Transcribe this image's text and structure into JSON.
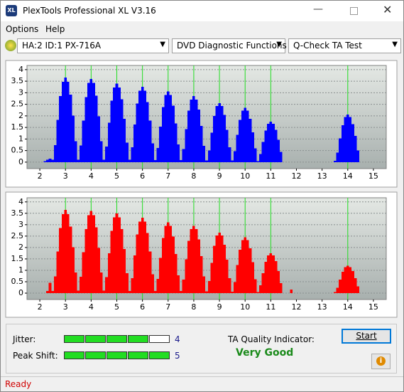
{
  "window": {
    "title": "PlexTools Professional XL V3.16",
    "menu": [
      "Options",
      "Help"
    ]
  },
  "toolbar": {
    "drive": "HA:2 ID:1  PX-716A",
    "function": "DVD Diagnostic Functions",
    "test": "Q-Check TA Test"
  },
  "chart_data": [
    {
      "type": "bar",
      "color": "#0000ff",
      "marker_color": "#22dd22",
      "grid": true,
      "xlim": [
        1.5,
        15.5
      ],
      "ylim": [
        -0.28,
        4.18
      ],
      "xticks": [
        2,
        3,
        4,
        5,
        6,
        7,
        8,
        9,
        10,
        11,
        12,
        13,
        14,
        15
      ],
      "yticks": [
        0,
        0.5,
        1,
        1.5,
        2,
        2.5,
        3,
        3.5,
        4
      ],
      "markers": [
        3,
        4,
        5,
        6,
        7,
        8,
        9,
        10,
        11,
        14
      ],
      "x": [
        2.2,
        2.3,
        2.4,
        2.5,
        2.6,
        2.7,
        2.8,
        2.9,
        3.0,
        3.1,
        3.2,
        3.3,
        3.4,
        3.5,
        3.6,
        3.7,
        3.8,
        3.9,
        4.0,
        4.1,
        4.2,
        4.3,
        4.4,
        4.5,
        4.6,
        4.7,
        4.8,
        4.9,
        5.0,
        5.1,
        5.2,
        5.3,
        5.4,
        5.5,
        5.6,
        5.7,
        5.8,
        5.9,
        6.0,
        6.1,
        6.2,
        6.3,
        6.4,
        6.5,
        6.6,
        6.7,
        6.8,
        6.9,
        7.0,
        7.1,
        7.2,
        7.3,
        7.4,
        7.5,
        7.6,
        7.7,
        7.8,
        7.9,
        8.0,
        8.1,
        8.2,
        8.3,
        8.4,
        8.5,
        8.6,
        8.7,
        8.8,
        8.9,
        9.0,
        9.1,
        9.2,
        9.3,
        9.4,
        9.5,
        9.6,
        9.7,
        9.8,
        9.9,
        10.0,
        10.1,
        10.2,
        10.3,
        10.4,
        10.5,
        10.6,
        10.7,
        10.8,
        10.9,
        11.0,
        11.1,
        11.2,
        11.3,
        11.4,
        13.5,
        13.6,
        13.7,
        13.8,
        13.9,
        14.0,
        14.1,
        14.2,
        14.3,
        14.4
      ],
      "values": [
        0.05,
        0.1,
        0.15,
        0.1,
        0.73,
        1.83,
        2.85,
        3.47,
        3.65,
        3.47,
        2.92,
        2.01,
        0.91,
        0.11,
        0.72,
        1.8,
        2.81,
        3.42,
        3.6,
        3.42,
        2.88,
        1.98,
        0.9,
        0.1,
        0.68,
        1.7,
        2.65,
        3.23,
        3.4,
        3.23,
        2.72,
        1.87,
        0.85,
        0.1,
        0.65,
        1.63,
        2.54,
        3.09,
        3.25,
        3.09,
        2.6,
        1.79,
        0.81,
        0.09,
        0.61,
        1.53,
        2.38,
        2.9,
        3.05,
        2.9,
        2.44,
        1.68,
        0.76,
        0.09,
        0.57,
        1.43,
        2.22,
        2.71,
        2.85,
        2.71,
        2.28,
        1.57,
        0.71,
        0.08,
        0.51,
        1.28,
        1.99,
        2.42,
        2.55,
        2.42,
        2.04,
        1.4,
        0.64,
        0.07,
        0.47,
        1.18,
        1.83,
        2.23,
        2.35,
        2.23,
        1.88,
        1.29,
        0.59,
        0.05,
        0.35,
        0.88,
        1.37,
        1.66,
        1.75,
        1.66,
        1.4,
        0.96,
        0.44,
        0.06,
        0.41,
        1.03,
        1.6,
        1.95,
        2.05,
        1.95,
        1.64,
        1.13,
        0.51
      ]
    },
    {
      "type": "bar",
      "color": "#ff0000",
      "marker_color": "#22dd22",
      "grid": true,
      "xlim": [
        1.5,
        15.5
      ],
      "ylim": [
        -0.28,
        4.18
      ],
      "xticks": [
        2,
        3,
        4,
        5,
        6,
        7,
        8,
        9,
        10,
        11,
        12,
        13,
        14,
        15
      ],
      "yticks": [
        0,
        0.5,
        1,
        1.5,
        2,
        2.5,
        3,
        3.5,
        4
      ],
      "markers": [
        3,
        4,
        5,
        6,
        7,
        8,
        9,
        10,
        11,
        14
      ],
      "x": [
        2.3,
        2.4,
        2.5,
        2.6,
        2.7,
        2.8,
        2.9,
        3.0,
        3.1,
        3.2,
        3.3,
        3.4,
        3.5,
        3.6,
        3.7,
        3.8,
        3.9,
        4.0,
        4.1,
        4.2,
        4.3,
        4.4,
        4.5,
        4.6,
        4.7,
        4.8,
        4.9,
        5.0,
        5.1,
        5.2,
        5.3,
        5.4,
        5.5,
        5.6,
        5.7,
        5.8,
        5.9,
        6.0,
        6.1,
        6.2,
        6.3,
        6.4,
        6.5,
        6.6,
        6.7,
        6.8,
        6.9,
        7.0,
        7.1,
        7.2,
        7.3,
        7.4,
        7.5,
        7.6,
        7.7,
        7.8,
        7.9,
        8.0,
        8.1,
        8.2,
        8.3,
        8.4,
        8.5,
        8.6,
        8.7,
        8.8,
        8.9,
        9.0,
        9.1,
        9.2,
        9.3,
        9.4,
        9.5,
        9.6,
        9.7,
        9.8,
        9.9,
        10.0,
        10.1,
        10.2,
        10.3,
        10.4,
        10.5,
        10.6,
        10.7,
        10.8,
        10.9,
        11.0,
        11.1,
        11.2,
        11.3,
        11.4,
        11.8,
        13.5,
        13.6,
        13.7,
        13.8,
        13.9,
        14.0,
        14.1,
        14.2,
        14.3,
        14.4
      ],
      "values": [
        0.1,
        0.45,
        0.1,
        0.73,
        1.83,
        2.85,
        3.47,
        3.65,
        3.47,
        2.92,
        2.01,
        0.91,
        0.11,
        0.72,
        1.8,
        2.81,
        3.42,
        3.6,
        3.42,
        2.88,
        1.98,
        0.9,
        0.11,
        0.7,
        1.75,
        2.73,
        3.33,
        3.5,
        3.33,
        2.8,
        1.93,
        0.88,
        0.1,
        0.66,
        1.65,
        2.57,
        3.14,
        3.3,
        3.14,
        2.64,
        1.82,
        0.83,
        0.09,
        0.62,
        1.55,
        2.42,
        2.95,
        3.1,
        2.95,
        2.48,
        1.71,
        0.78,
        0.09,
        0.59,
        1.48,
        2.3,
        2.8,
        2.95,
        2.8,
        2.36,
        1.62,
        0.74,
        0.08,
        0.53,
        1.33,
        2.07,
        2.52,
        2.65,
        2.52,
        2.12,
        1.46,
        0.66,
        0.07,
        0.49,
        1.23,
        1.91,
        2.33,
        2.45,
        2.33,
        1.96,
        1.35,
        0.61,
        0.05,
        0.35,
        0.88,
        1.37,
        1.66,
        1.75,
        1.66,
        1.4,
        0.96,
        0.44,
        0.15,
        0.04,
        0.24,
        0.6,
        0.94,
        1.14,
        1.2,
        1.14,
        0.96,
        0.66,
        0.3
      ]
    }
  ],
  "results": {
    "jitter": {
      "label": "Jitter:",
      "value": 4
    },
    "peak_shift": {
      "label": "Peak Shift:",
      "value": 5
    },
    "quality_label": "TA Quality Indicator:",
    "quality": "Very Good",
    "start": "Start"
  },
  "status": "Ready"
}
